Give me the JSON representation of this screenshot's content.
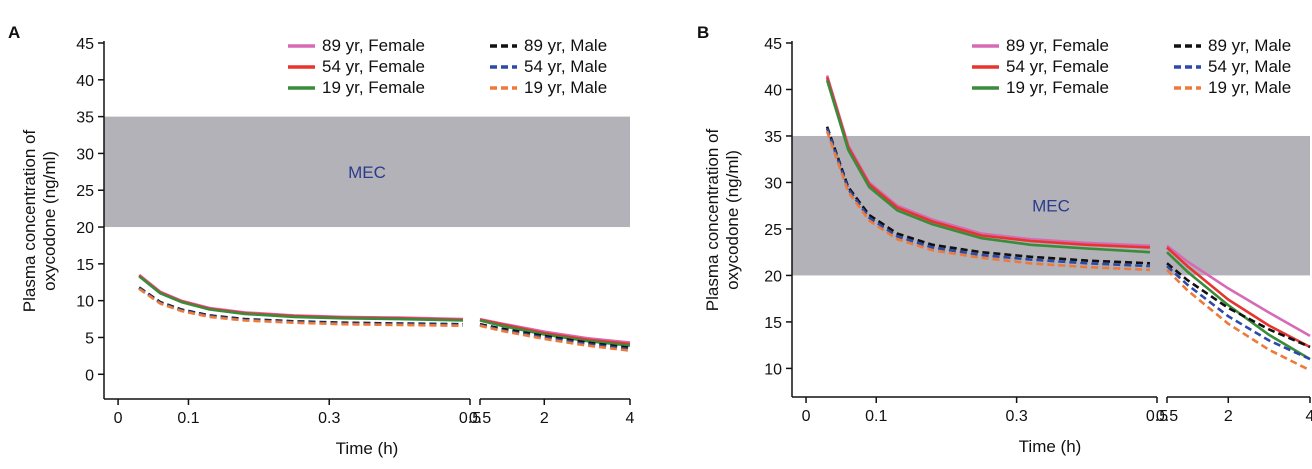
{
  "chart_data": [
    {
      "panel_label": "A",
      "type": "line",
      "xlabel": "Time (h)",
      "ylabel": [
        "Plasma concentration of",
        "oxycodone (ng/ml)"
      ],
      "ylim": [
        -2,
        45
      ],
      "yticks": [
        0,
        5,
        10,
        15,
        20,
        25,
        30,
        35,
        40,
        45
      ],
      "xticks_left": [
        "0",
        "0.1",
        "0.3",
        "0.5"
      ],
      "xticks_right": [
        "0.5",
        "2",
        "4"
      ],
      "xlim_left": [
        -0.02,
        0.5
      ],
      "xlim_right": [
        0.5,
        4
      ],
      "x_axis_break": true,
      "band": {
        "label": "MEC",
        "y_from": 20,
        "y_to": 35,
        "color": "#b2b2b8"
      },
      "legend_position": "top-right",
      "series": [
        {
          "name": "89 yr, Female",
          "color": "#d66ab6",
          "dash": "solid",
          "left": [
            [
              0.03,
              13.5
            ],
            [
              0.06,
              11.2
            ],
            [
              0.09,
              10.0
            ],
            [
              0.13,
              9.0
            ],
            [
              0.18,
              8.4
            ],
            [
              0.25,
              8.0
            ],
            [
              0.32,
              7.8
            ],
            [
              0.4,
              7.7
            ],
            [
              0.49,
              7.5
            ]
          ],
          "right": [
            [
              0.5,
              7.5
            ],
            [
              1.0,
              6.9
            ],
            [
              2.0,
              5.8
            ],
            [
              3.0,
              4.9
            ],
            [
              4.0,
              4.3
            ]
          ]
        },
        {
          "name": "54 yr, Female",
          "color": "#e8342f",
          "dash": "solid",
          "left": [
            [
              0.03,
              13.4
            ],
            [
              0.06,
              11.1
            ],
            [
              0.09,
              9.9
            ],
            [
              0.13,
              8.9
            ],
            [
              0.18,
              8.3
            ],
            [
              0.25,
              7.9
            ],
            [
              0.32,
              7.7
            ],
            [
              0.4,
              7.6
            ],
            [
              0.49,
              7.4
            ]
          ],
          "right": [
            [
              0.5,
              7.4
            ],
            [
              1.0,
              6.8
            ],
            [
              2.0,
              5.6
            ],
            [
              3.0,
              4.7
            ],
            [
              4.0,
              4.1
            ]
          ]
        },
        {
          "name": "19 yr, Female",
          "color": "#3a8c3a",
          "dash": "solid",
          "left": [
            [
              0.03,
              13.3
            ],
            [
              0.06,
              11.0
            ],
            [
              0.09,
              9.8
            ],
            [
              0.13,
              8.8
            ],
            [
              0.18,
              8.2
            ],
            [
              0.25,
              7.8
            ],
            [
              0.32,
              7.6
            ],
            [
              0.4,
              7.5
            ],
            [
              0.49,
              7.3
            ]
          ],
          "right": [
            [
              0.5,
              7.3
            ],
            [
              1.0,
              6.6
            ],
            [
              2.0,
              5.4
            ],
            [
              3.0,
              4.5
            ],
            [
              4.0,
              3.9
            ]
          ]
        },
        {
          "name": "89 yr, Male",
          "color": "#111111",
          "dash": "dashed",
          "left": [
            [
              0.03,
              11.8
            ],
            [
              0.06,
              9.8
            ],
            [
              0.09,
              8.8
            ],
            [
              0.13,
              8.0
            ],
            [
              0.18,
              7.5
            ],
            [
              0.25,
              7.2
            ],
            [
              0.32,
              7.0
            ],
            [
              0.4,
              6.9
            ],
            [
              0.49,
              6.8
            ]
          ],
          "right": [
            [
              0.5,
              6.8
            ],
            [
              1.0,
              6.2
            ],
            [
              2.0,
              5.2
            ],
            [
              3.0,
              4.3
            ],
            [
              4.0,
              3.6
            ]
          ]
        },
        {
          "name": "54 yr, Male",
          "color": "#2c4aa8",
          "dash": "dashed",
          "left": [
            [
              0.03,
              11.7
            ],
            [
              0.06,
              9.7
            ],
            [
              0.09,
              8.7
            ],
            [
              0.13,
              7.9
            ],
            [
              0.18,
              7.4
            ],
            [
              0.25,
              7.1
            ],
            [
              0.32,
              6.9
            ],
            [
              0.4,
              6.8
            ],
            [
              0.49,
              6.7
            ]
          ],
          "right": [
            [
              0.5,
              6.7
            ],
            [
              1.0,
              6.0
            ],
            [
              2.0,
              5.0
            ],
            [
              3.0,
              4.1
            ],
            [
              4.0,
              3.4
            ]
          ]
        },
        {
          "name": "19 yr, Male",
          "color": "#ee7a3a",
          "dash": "dashed",
          "left": [
            [
              0.03,
              11.6
            ],
            [
              0.06,
              9.6
            ],
            [
              0.09,
              8.6
            ],
            [
              0.13,
              7.8
            ],
            [
              0.18,
              7.3
            ],
            [
              0.25,
              7.0
            ],
            [
              0.32,
              6.8
            ],
            [
              0.4,
              6.7
            ],
            [
              0.49,
              6.6
            ]
          ],
          "right": [
            [
              0.5,
              6.6
            ],
            [
              1.0,
              5.9
            ],
            [
              2.0,
              4.8
            ],
            [
              3.0,
              3.9
            ],
            [
              4.0,
              3.2
            ]
          ]
        }
      ]
    },
    {
      "panel_label": "B",
      "type": "line",
      "xlabel": "Time (h)",
      "ylabel": [
        "Plasma concentration of",
        "oxycodone (ng/ml)"
      ],
      "ylim": [
        8,
        45
      ],
      "yticks": [
        10,
        15,
        20,
        25,
        30,
        35,
        40,
        45
      ],
      "xticks_left": [
        "0",
        "0.1",
        "0.3",
        "0.5"
      ],
      "xticks_right": [
        "0.5",
        "2",
        "4"
      ],
      "xlim_left": [
        -0.02,
        0.5
      ],
      "xlim_right": [
        0.5,
        4
      ],
      "x_axis_break": true,
      "band": {
        "label": "MEC",
        "y_from": 20,
        "y_to": 35,
        "color": "#b2b2b8"
      },
      "legend_position": "top-right",
      "series": [
        {
          "name": "89 yr, Female",
          "color": "#d66ab6",
          "dash": "solid",
          "left": [
            [
              0.03,
              41.5
            ],
            [
              0.06,
              34.0
            ],
            [
              0.09,
              30.0
            ],
            [
              0.13,
              27.5
            ],
            [
              0.18,
              26.0
            ],
            [
              0.25,
              24.5
            ],
            [
              0.32,
              23.9
            ],
            [
              0.4,
              23.5
            ],
            [
              0.49,
              23.2
            ]
          ],
          "right": [
            [
              0.5,
              23.2
            ],
            [
              1.0,
              21.5
            ],
            [
              2.0,
              18.6
            ],
            [
              3.0,
              16.0
            ],
            [
              4.0,
              13.5
            ]
          ]
        },
        {
          "name": "54 yr, Female",
          "color": "#e8342f",
          "dash": "solid",
          "left": [
            [
              0.03,
              41.3
            ],
            [
              0.06,
              33.8
            ],
            [
              0.09,
              29.8
            ],
            [
              0.13,
              27.3
            ],
            [
              0.18,
              25.8
            ],
            [
              0.25,
              24.3
            ],
            [
              0.32,
              23.7
            ],
            [
              0.4,
              23.3
            ],
            [
              0.49,
              23.0
            ]
          ],
          "right": [
            [
              0.5,
              23.0
            ],
            [
              1.0,
              21.0
            ],
            [
              2.0,
              17.4
            ],
            [
              3.0,
              14.6
            ],
            [
              4.0,
              12.3
            ]
          ]
        },
        {
          "name": "19 yr, Female",
          "color": "#3a8c3a",
          "dash": "solid",
          "left": [
            [
              0.03,
              41.0
            ],
            [
              0.06,
              33.5
            ],
            [
              0.09,
              29.5
            ],
            [
              0.13,
              27.0
            ],
            [
              0.18,
              25.5
            ],
            [
              0.25,
              24.0
            ],
            [
              0.32,
              23.3
            ],
            [
              0.4,
              22.9
            ],
            [
              0.49,
              22.5
            ]
          ],
          "right": [
            [
              0.5,
              22.5
            ],
            [
              1.0,
              20.4
            ],
            [
              2.0,
              16.8
            ],
            [
              3.0,
              13.6
            ],
            [
              4.0,
              11.0
            ]
          ]
        },
        {
          "name": "89 yr, Male",
          "color": "#111111",
          "dash": "dashed",
          "left": [
            [
              0.03,
              36.0
            ],
            [
              0.06,
              29.5
            ],
            [
              0.09,
              26.5
            ],
            [
              0.13,
              24.5
            ],
            [
              0.18,
              23.3
            ],
            [
              0.25,
              22.5
            ],
            [
              0.32,
              22.0
            ],
            [
              0.4,
              21.6
            ],
            [
              0.49,
              21.3
            ]
          ],
          "right": [
            [
              0.5,
              21.3
            ],
            [
              1.0,
              19.5
            ],
            [
              2.0,
              16.5
            ],
            [
              3.0,
              14.2
            ],
            [
              4.0,
              12.3
            ]
          ]
        },
        {
          "name": "54 yr, Male",
          "color": "#2c4aa8",
          "dash": "dashed",
          "left": [
            [
              0.03,
              35.8
            ],
            [
              0.06,
              29.3
            ],
            [
              0.09,
              26.2
            ],
            [
              0.13,
              24.2
            ],
            [
              0.18,
              23.0
            ],
            [
              0.25,
              22.2
            ],
            [
              0.32,
              21.7
            ],
            [
              0.4,
              21.3
            ],
            [
              0.49,
              21.0
            ]
          ],
          "right": [
            [
              0.5,
              21.0
            ],
            [
              1.0,
              19.0
            ],
            [
              2.0,
              15.6
            ],
            [
              3.0,
              13.0
            ],
            [
              4.0,
              11.0
            ]
          ]
        },
        {
          "name": "19 yr, Male",
          "color": "#ee7a3a",
          "dash": "dashed",
          "left": [
            [
              0.03,
              35.5
            ],
            [
              0.06,
              29.0
            ],
            [
              0.09,
              25.9
            ],
            [
              0.13,
              23.9
            ],
            [
              0.18,
              22.7
            ],
            [
              0.25,
              21.9
            ],
            [
              0.32,
              21.3
            ],
            [
              0.4,
              20.9
            ],
            [
              0.49,
              20.6
            ]
          ],
          "right": [
            [
              0.5,
              20.6
            ],
            [
              1.0,
              18.4
            ],
            [
              2.0,
              14.8
            ],
            [
              3.0,
              12.0
            ],
            [
              4.0,
              9.8
            ]
          ]
        }
      ]
    }
  ]
}
